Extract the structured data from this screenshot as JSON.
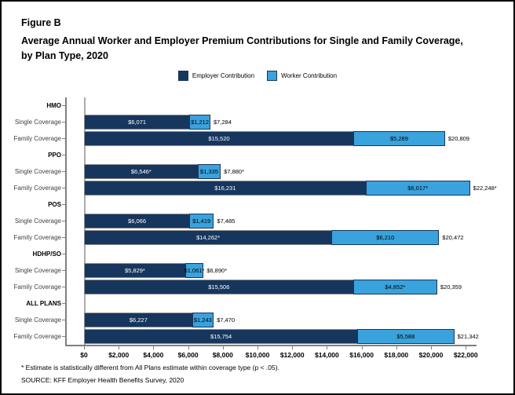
{
  "header": {
    "figure_label": "Figure B",
    "title_line1": "Average Annual Worker and Employer Premium Contributions for Single and Family Coverage,",
    "title_line2": "by Plan Type, 2020"
  },
  "legend": [
    {
      "label": "Employer Contribution",
      "color": "#17365D"
    },
    {
      "label": "Worker Contribution",
      "color": "#3AA2DC"
    }
  ],
  "chart_data": {
    "type": "bar",
    "orientation": "horizontal",
    "stacked": true,
    "title": "Average Annual Worker and Employer Premium Contributions for Single and Family Coverage, by Plan Type, 2020",
    "xlabel": "",
    "ylabel": "",
    "xlim": [
      0,
      22800
    ],
    "grid": false,
    "legend_position": "top",
    "series": [
      "Employer Contribution",
      "Worker Contribution"
    ],
    "colors": {
      "employer": "#17365D",
      "worker": "#3AA2DC"
    },
    "x_ticks": [
      {
        "value": 0,
        "label": "$0"
      },
      {
        "value": 2000,
        "label": "$2,000"
      },
      {
        "value": 4000,
        "label": "$4,000"
      },
      {
        "value": 6000,
        "label": "$6,000"
      },
      {
        "value": 8000,
        "label": "$8,000"
      },
      {
        "value": 10000,
        "label": "$10,000"
      },
      {
        "value": 12000,
        "label": "$12,000"
      },
      {
        "value": 14000,
        "label": "$14,000"
      },
      {
        "value": 16000,
        "label": "$16,000"
      },
      {
        "value": 18000,
        "label": "$18,000"
      },
      {
        "value": 20000,
        "label": "$20,000"
      },
      {
        "value": 22000,
        "label": "$22,000"
      }
    ],
    "groups": [
      {
        "name": "HMO",
        "rows": [
          {
            "label": "Single Coverage",
            "employer": 6071,
            "worker": 1212,
            "employer_label": "$6,071",
            "worker_label": "$1,212",
            "total_label": "$7,284"
          },
          {
            "label": "Family Coverage",
            "employer": 15520,
            "worker": 5289,
            "employer_label": "$15,520",
            "worker_label": "$5,289",
            "total_label": "$20,809"
          }
        ]
      },
      {
        "name": "PPO",
        "rows": [
          {
            "label": "Single Coverage",
            "employer": 6546,
            "worker": 1335,
            "employer_label": "$6,546*",
            "worker_label": "$1,335",
            "total_label": "$7,880*"
          },
          {
            "label": "Family Coverage",
            "employer": 16231,
            "worker": 6017,
            "employer_label": "$16,231",
            "worker_label": "$6,017*",
            "total_label": "$22,248*"
          }
        ]
      },
      {
        "name": "POS",
        "rows": [
          {
            "label": "Single Coverage",
            "employer": 6066,
            "worker": 1419,
            "employer_label": "$6,066",
            "worker_label": "$1,419",
            "total_label": "$7,485"
          },
          {
            "label": "Family Coverage",
            "employer": 14262,
            "worker": 6210,
            "employer_label": "$14,262*",
            "worker_label": "$6,210",
            "total_label": "$20,472"
          }
        ]
      },
      {
        "name": "HDHP/SO",
        "rows": [
          {
            "label": "Single Coverage",
            "employer": 5829,
            "worker": 1061,
            "employer_label": "$5,829*",
            "worker_label": "$1,061*",
            "total_label": "$6,890*"
          },
          {
            "label": "Family Coverage",
            "employer": 15506,
            "worker": 4852,
            "employer_label": "$15,506",
            "worker_label": "$4,852*",
            "total_label": "$20,359"
          }
        ]
      },
      {
        "name": "ALL PLANS",
        "rows": [
          {
            "label": "Single Coverage",
            "employer": 6227,
            "worker": 1243,
            "employer_label": "$6,227",
            "worker_label": "$1,243",
            "total_label": "$7,470"
          },
          {
            "label": "Family Coverage",
            "employer": 15754,
            "worker": 5588,
            "employer_label": "$15,754",
            "worker_label": "$5,588",
            "total_label": "$21,342"
          }
        ]
      }
    ]
  },
  "footnotes": {
    "asterisk": "* Estimate is statistically different from All Plans estimate within coverage type (p < .05).",
    "source": "SOURCE: KFF Employer Health Benefits Survey, 2020"
  }
}
